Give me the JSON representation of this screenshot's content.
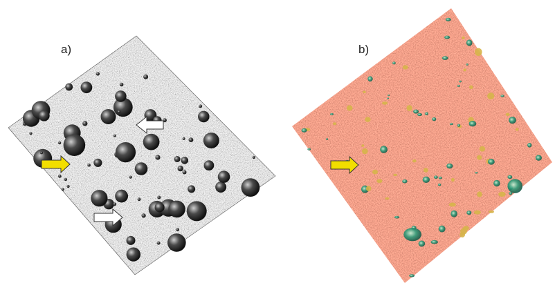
{
  "figure": {
    "panel_a": {
      "label": "a)",
      "fill_color": "#8a8a8a"
    },
    "panel_b": {
      "label": "b)",
      "fill_color": "#d9614b"
    },
    "arrows": {
      "yellow_color": "#f2de00",
      "white_color": "#ffffff",
      "outline_color": "#333333"
    }
  }
}
